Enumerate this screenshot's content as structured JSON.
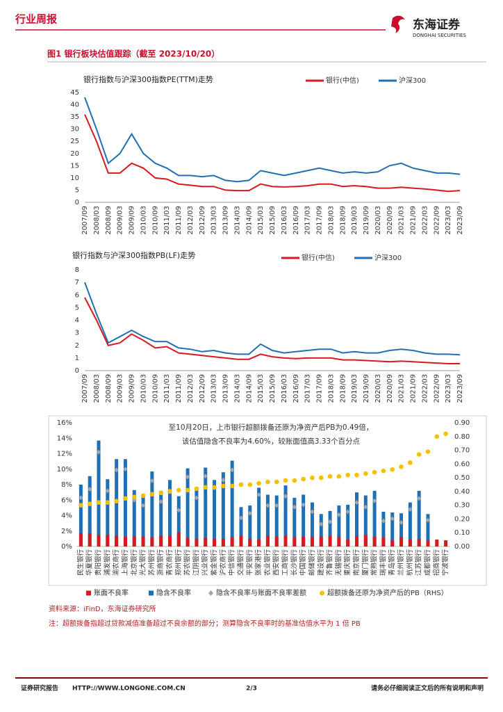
{
  "header": {
    "title": "行业周报",
    "logo_cn": "东海证券",
    "logo_en": "DONGHAI SECURITIES"
  },
  "figure_title": "图1  银行板块估值跟踪（截至 2023/10/20）",
  "chart_data": [
    {
      "type": "line",
      "title": "银行指数与沪深300指数PE(TTM)走势",
      "x": [
        "2007/09",
        "2008/03",
        "2008/09",
        "2009/03",
        "2009/09",
        "2010/03",
        "2010/09",
        "2011/03",
        "2011/09",
        "2012/03",
        "2012/09",
        "2013/03",
        "2013/09",
        "2014/03",
        "2014/09",
        "2015/03",
        "2015/09",
        "2016/03",
        "2016/09",
        "2017/03",
        "2017/09",
        "2018/03",
        "2018/09",
        "2019/03",
        "2019/09",
        "2020/03",
        "2020/09",
        "2021/03",
        "2021/09",
        "2022/03",
        "2022/09",
        "2023/03",
        "2023/09"
      ],
      "series": [
        {
          "name": "银行(中信)",
          "color": "#d71920",
          "values": [
            36,
            25,
            12,
            12,
            16,
            14,
            10,
            9.5,
            7.5,
            7,
            6.5,
            6.5,
            5,
            4.8,
            4.8,
            7.5,
            6.5,
            6.3,
            6.5,
            6.8,
            7.5,
            7.5,
            6.5,
            6.8,
            6.5,
            5.8,
            5.8,
            6.2,
            5.8,
            5.5,
            5,
            4.5,
            4.8
          ]
        },
        {
          "name": "沪深300",
          "color": "#1f6fb5",
          "values": [
            43,
            30,
            16,
            20,
            28,
            20,
            16,
            14,
            11,
            11,
            10.5,
            11,
            9,
            8.5,
            9,
            13,
            12,
            11,
            12,
            13,
            14,
            13,
            12,
            12.5,
            12,
            12.5,
            15,
            16,
            14,
            13,
            12,
            12,
            11.5
          ]
        }
      ],
      "ylim": [
        0,
        45
      ],
      "yticks": [
        0,
        5,
        10,
        15,
        20,
        25,
        30,
        35,
        40,
        45
      ]
    },
    {
      "type": "line",
      "title": "银行指数与沪深300指数PB(LF)走势",
      "x": [
        "2007/09",
        "2008/03",
        "2008/09",
        "2009/03",
        "2009/09",
        "2010/03",
        "2010/09",
        "2011/03",
        "2011/09",
        "2012/03",
        "2012/09",
        "2013/03",
        "2013/09",
        "2014/03",
        "2014/09",
        "2015/03",
        "2015/09",
        "2016/03",
        "2016/09",
        "2017/03",
        "2017/09",
        "2018/03",
        "2018/09",
        "2019/03",
        "2019/09",
        "2020/03",
        "2020/09",
        "2021/03",
        "2021/09",
        "2022/03",
        "2022/09",
        "2023/03",
        "2023/09"
      ],
      "series": [
        {
          "name": "银行(中信)",
          "color": "#d71920",
          "values": [
            5.8,
            4,
            2,
            2.2,
            2.9,
            2.4,
            1.8,
            1.9,
            1.4,
            1.3,
            1.2,
            1.1,
            1,
            0.9,
            0.9,
            1.3,
            1.1,
            1,
            0.95,
            1,
            1,
            1,
            0.85,
            0.85,
            0.8,
            0.75,
            0.7,
            0.75,
            0.7,
            0.65,
            0.6,
            0.55,
            0.55
          ]
        },
        {
          "name": "沪深300",
          "color": "#1f6fb5",
          "values": [
            7,
            4.5,
            2.2,
            2.7,
            3.2,
            2.7,
            2.3,
            2.3,
            1.8,
            1.7,
            1.5,
            1.6,
            1.4,
            1.3,
            1.3,
            2.1,
            1.6,
            1.4,
            1.5,
            1.6,
            1.7,
            1.7,
            1.4,
            1.5,
            1.4,
            1.4,
            1.6,
            1.7,
            1.6,
            1.4,
            1.3,
            1.3,
            1.25
          ]
        }
      ],
      "ylim": [
        0,
        8
      ],
      "yticks": [
        0,
        1,
        2,
        3,
        4,
        5,
        6,
        7,
        8
      ]
    },
    {
      "type": "bar",
      "annotations": [
        "至10月20日，上市银行超额拨备还原为净资产后PB为0.49倍，",
        "该估值隐含不良率为4.60%，较账面值高3.33个百分点"
      ],
      "categories": [
        "民生银行",
        "华夏银行",
        "贵阳银行",
        "浦发银行",
        "渝农商行",
        "上海银行",
        "北京银行",
        "光大银行",
        "苏州银行",
        "浙商银行",
        "青农商行",
        "郑州银行",
        "苏农银行",
        "江阴银行",
        "兴业银行",
        "紫金银行",
        "沪农商行",
        "中信银行",
        "交通银行",
        "平安银行",
        "张家港行",
        "农业银行",
        "西安银行",
        "工商银行",
        "长沙银行",
        "中国银行",
        "邮储银行",
        "建设银行",
        "齐鲁银行",
        "无锡银行",
        "重庆银行",
        "南京银行",
        "厦门银行",
        "常熟银行",
        "瑞丰银行",
        "青岛银行",
        "兰州银行",
        "杭州银行",
        "江苏银行",
        "成都银行",
        "招商银行",
        "宁波银行"
      ],
      "series": [
        {
          "name": "账面不良率",
          "type": "bar",
          "color": "#d71920",
          "values": [
            1.7,
            1.7,
            1.5,
            1.5,
            1.4,
            1.3,
            1.3,
            1.3,
            1.2,
            1.4,
            1.4,
            1.8,
            1.1,
            1.0,
            1.1,
            1.0,
            1.0,
            1.2,
            1.4,
            1.0,
            0.9,
            1.4,
            1.3,
            1.4,
            1.2,
            1.3,
            1.2,
            1.3,
            1.4,
            1.2,
            0.9,
            1.3,
            1.5,
            1.3,
            1.2,
            0.8,
            1.2,
            0.9,
            1.0,
            0.8,
            0.9,
            0.8
          ]
        },
        {
          "name": "隐含不良率",
          "type": "bar",
          "color": "#1f6fb5",
          "values": [
            8.0,
            9.1,
            13.7,
            8.7,
            11.3,
            11.3,
            7.3,
            6.6,
            9.7,
            7.2,
            8.6,
            6.5,
            10.1,
            7.3,
            10.2,
            8.6,
            9.6,
            11.1,
            5.1,
            5.3,
            7.6,
            6.7,
            6.6,
            7.9,
            6.3,
            6.7,
            5.7,
            4.2,
            4.6,
            5.3,
            5.4,
            7.0,
            6.6,
            7.2,
            4.5,
            4.4,
            4.3,
            5.7,
            7.2,
            4.2,
            null,
            null
          ]
        },
        {
          "name": "隐含不良率与账面不良率差额",
          "type": "scatter",
          "color": "#a6a6a6",
          "values": [
            6.3,
            7.4,
            12.2,
            7.2,
            9.9,
            10.0,
            6.0,
            5.3,
            8.5,
            5.8,
            7.2,
            4.7,
            9.0,
            6.3,
            9.1,
            7.6,
            8.6,
            9.9,
            3.7,
            4.3,
            6.7,
            5.3,
            5.3,
            6.5,
            5.1,
            5.4,
            4.5,
            2.9,
            3.2,
            4.1,
            4.5,
            5.7,
            5.1,
            5.9,
            3.3,
            3.6,
            3.1,
            4.8,
            6.2,
            3.4,
            null,
            null
          ]
        },
        {
          "name": "超额拨备还原为净资产后的PB（RHS）",
          "type": "scatter",
          "axis": "y2",
          "color": "#f5c000",
          "values": [
            0.3,
            0.31,
            0.32,
            0.32,
            0.33,
            0.35,
            0.36,
            0.37,
            0.38,
            0.39,
            0.4,
            0.41,
            0.41,
            0.42,
            0.43,
            0.43,
            0.44,
            0.44,
            0.45,
            0.45,
            0.46,
            0.47,
            0.47,
            0.48,
            0.48,
            0.49,
            0.5,
            0.5,
            0.51,
            0.51,
            0.52,
            0.52,
            0.53,
            0.54,
            0.55,
            0.56,
            0.58,
            0.61,
            0.67,
            0.69,
            0.8,
            0.82
          ]
        }
      ],
      "ylim": [
        0,
        16
      ],
      "yticks": [
        {
          "value": 0,
          "label": "0%"
        },
        {
          "value": 2,
          "label": "2%"
        },
        {
          "value": 4,
          "label": "4%"
        },
        {
          "value": 6,
          "label": "6%"
        },
        {
          "value": 8,
          "label": "8%"
        },
        {
          "value": 10,
          "label": "10%"
        },
        {
          "value": 12,
          "label": "12%"
        },
        {
          "value": 14,
          "label": "14%"
        },
        {
          "value": 16,
          "label": "16%"
        }
      ],
      "y2lim": [
        0,
        0.9
      ],
      "y2ticks": [
        {
          "value": 0,
          "label": "0.00"
        },
        {
          "value": 0.1,
          "label": "0.10"
        },
        {
          "value": 0.2,
          "label": "0.20"
        },
        {
          "value": 0.3,
          "label": "0.30"
        },
        {
          "value": 0.4,
          "label": "0.40"
        },
        {
          "value": 0.5,
          "label": "0.50"
        },
        {
          "value": 0.6,
          "label": "0.60"
        },
        {
          "value": 0.7,
          "label": "0.70"
        },
        {
          "value": 0.8,
          "label": "0.80"
        },
        {
          "value": 0.9,
          "label": "0.90"
        }
      ]
    }
  ],
  "source": "资料来源：iFinD，东海证券研究所",
  "note": "注：超额拨备指超过贷款减值准备超过不良余额的部分；测算隐含不良率时的基准估值水平为 1 倍 PB",
  "footer": {
    "left": "证券研究报告",
    "url": "HTTP://WWW.LONGONE.COM.CN",
    "page": "2/3",
    "right": "请务必仔细阅读正文后的所有说明和声明"
  }
}
